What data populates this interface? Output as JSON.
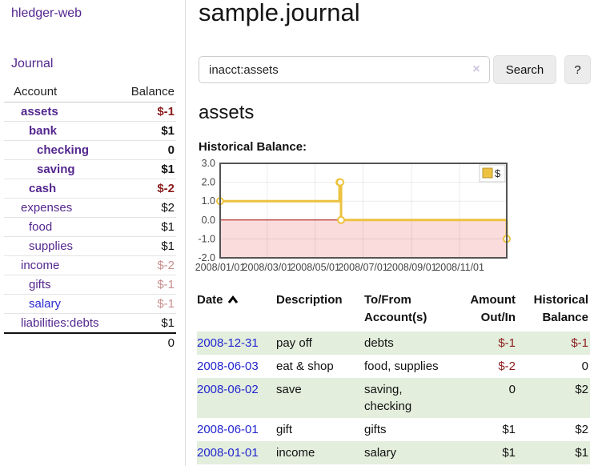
{
  "sidebar": {
    "brand": "hledger-web",
    "journal_link": "Journal",
    "accounts_table": {
      "header_account": "Account",
      "header_balance": "Balance",
      "rows": [
        {
          "name": "assets",
          "balance": "$-1"
        },
        {
          "name": "bank",
          "balance": "$1"
        },
        {
          "name": "checking",
          "balance": "0"
        },
        {
          "name": "saving",
          "balance": "$1"
        },
        {
          "name": "cash",
          "balance": "$-2"
        },
        {
          "name": "expenses",
          "balance": "$2"
        },
        {
          "name": "food",
          "balance": "$1"
        },
        {
          "name": "supplies",
          "balance": "$1"
        },
        {
          "name": "income",
          "balance": "$-2"
        },
        {
          "name": "gifts",
          "balance": "$-1"
        },
        {
          "name": "salary",
          "balance": "$-1"
        },
        {
          "name": "liabilities:debts",
          "balance": "$1"
        }
      ],
      "total": "0"
    }
  },
  "main": {
    "title": "sample.journal",
    "search": {
      "value": "inacct:assets",
      "clear_icon": "×",
      "search_button": "Search",
      "help_button": "?"
    },
    "account_heading": "assets"
  },
  "chart_data": {
    "type": "line",
    "title": "Historical Balance:",
    "series": [
      {
        "name": "$",
        "color": "#EDC240",
        "step": true,
        "points": [
          [
            "2008-01-01",
            1
          ],
          [
            "2008-06-01",
            2
          ],
          [
            "2008-06-02",
            2
          ],
          [
            "2008-06-03",
            0
          ],
          [
            "2008-12-31",
            -1
          ]
        ]
      }
    ],
    "xlim": [
      "2008-01-01",
      "2008-12-31"
    ],
    "ylim": [
      -2,
      3
    ],
    "yticks": [
      -2,
      -1,
      0,
      1,
      2,
      3
    ],
    "ytick_labels": [
      "-2.0",
      "-1.0",
      "0.0",
      "1.0",
      "2.0",
      "3.0"
    ],
    "xticks": [
      "2008-01-01",
      "2008-03-01",
      "2008-05-01",
      "2008-07-01",
      "2008-09-01",
      "2008-11-01"
    ],
    "xtick_labels": [
      "2008/01/01",
      "2008/03/01",
      "2008/05/01",
      "2008/07/01",
      "2008/09/01",
      "2008/11/01"
    ],
    "legend": {
      "label": "$",
      "position": "top-right"
    },
    "grid": true,
    "negative_region_color": "#fbdcdc",
    "zero_line_color": "#a40000",
    "border_color": "#545454"
  },
  "transactions": {
    "headers": {
      "date": "Date",
      "description": "Description",
      "accounts": "To/From Account(s)",
      "amount": "Amount Out/In",
      "balance": "Historical Balance"
    },
    "rows": [
      {
        "date": "2008-12-31",
        "description": "pay off",
        "accounts": "debts",
        "amount": "$-1",
        "balance": "$-1"
      },
      {
        "date": "2008-06-03",
        "description": "eat & shop",
        "accounts": "food, supplies",
        "amount": "$-2",
        "balance": "0"
      },
      {
        "date": "2008-06-02",
        "description": "save",
        "accounts": "saving, checking",
        "amount": "0",
        "balance": "$2"
      },
      {
        "date": "2008-06-01",
        "description": "gift",
        "accounts": "gifts",
        "amount": "$1",
        "balance": "$2"
      },
      {
        "date": "2008-01-01",
        "description": "income",
        "accounts": "salary",
        "amount": "$1",
        "balance": "$1"
      }
    ]
  }
}
